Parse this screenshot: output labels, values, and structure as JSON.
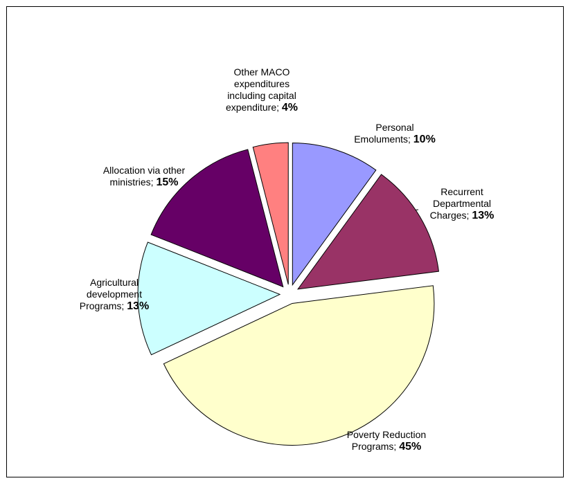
{
  "chart_data": {
    "type": "pie",
    "categories": [
      "Personal Emoluments;",
      "Recurrent Departmental Charges;",
      "Poverty Reduction Programs;",
      "Agricultural development Programs;",
      "Allocation via other ministries;",
      "Other MACO expenditures including capital expenditure;"
    ],
    "values": [
      10,
      13,
      45,
      13,
      15,
      4
    ],
    "value_labels": [
      "10%",
      "13%",
      "45%",
      "13%",
      "15%",
      "4%"
    ],
    "colors": [
      "#9999ff",
      "#993366",
      "#ffffcc",
      "#ccffff",
      "#660066",
      "#ff8080"
    ]
  }
}
